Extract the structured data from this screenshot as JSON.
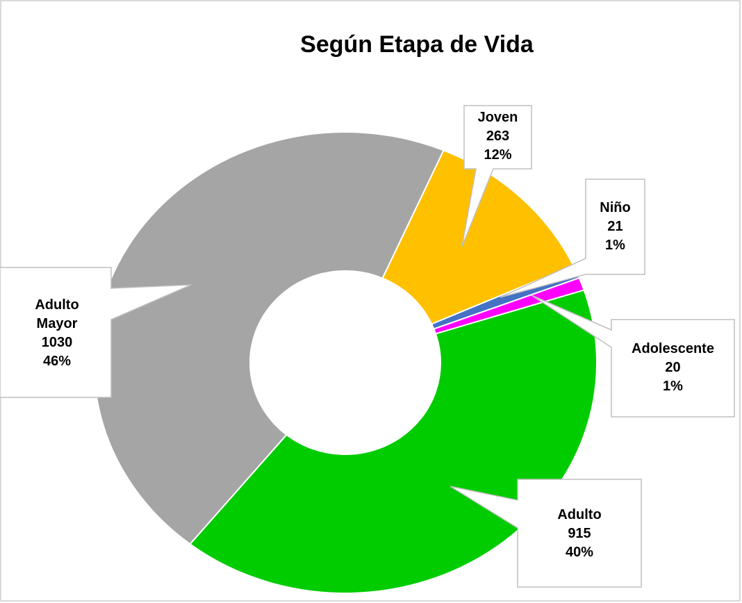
{
  "chart_data": {
    "type": "donut",
    "title": "Según Etapa de Vida",
    "categories": [
      "Joven",
      "Niño",
      "Adolescente",
      "Adulto",
      "Adulto Mayor"
    ],
    "values": [
      263,
      21,
      20,
      915,
      1030
    ],
    "percent_labels": [
      "12%",
      "1%",
      "1%",
      "40%",
      "46%"
    ],
    "colors": [
      "#ffc000",
      "#4472c4",
      "#ff00ff",
      "#00cc00",
      "#a5a5a5"
    ]
  }
}
